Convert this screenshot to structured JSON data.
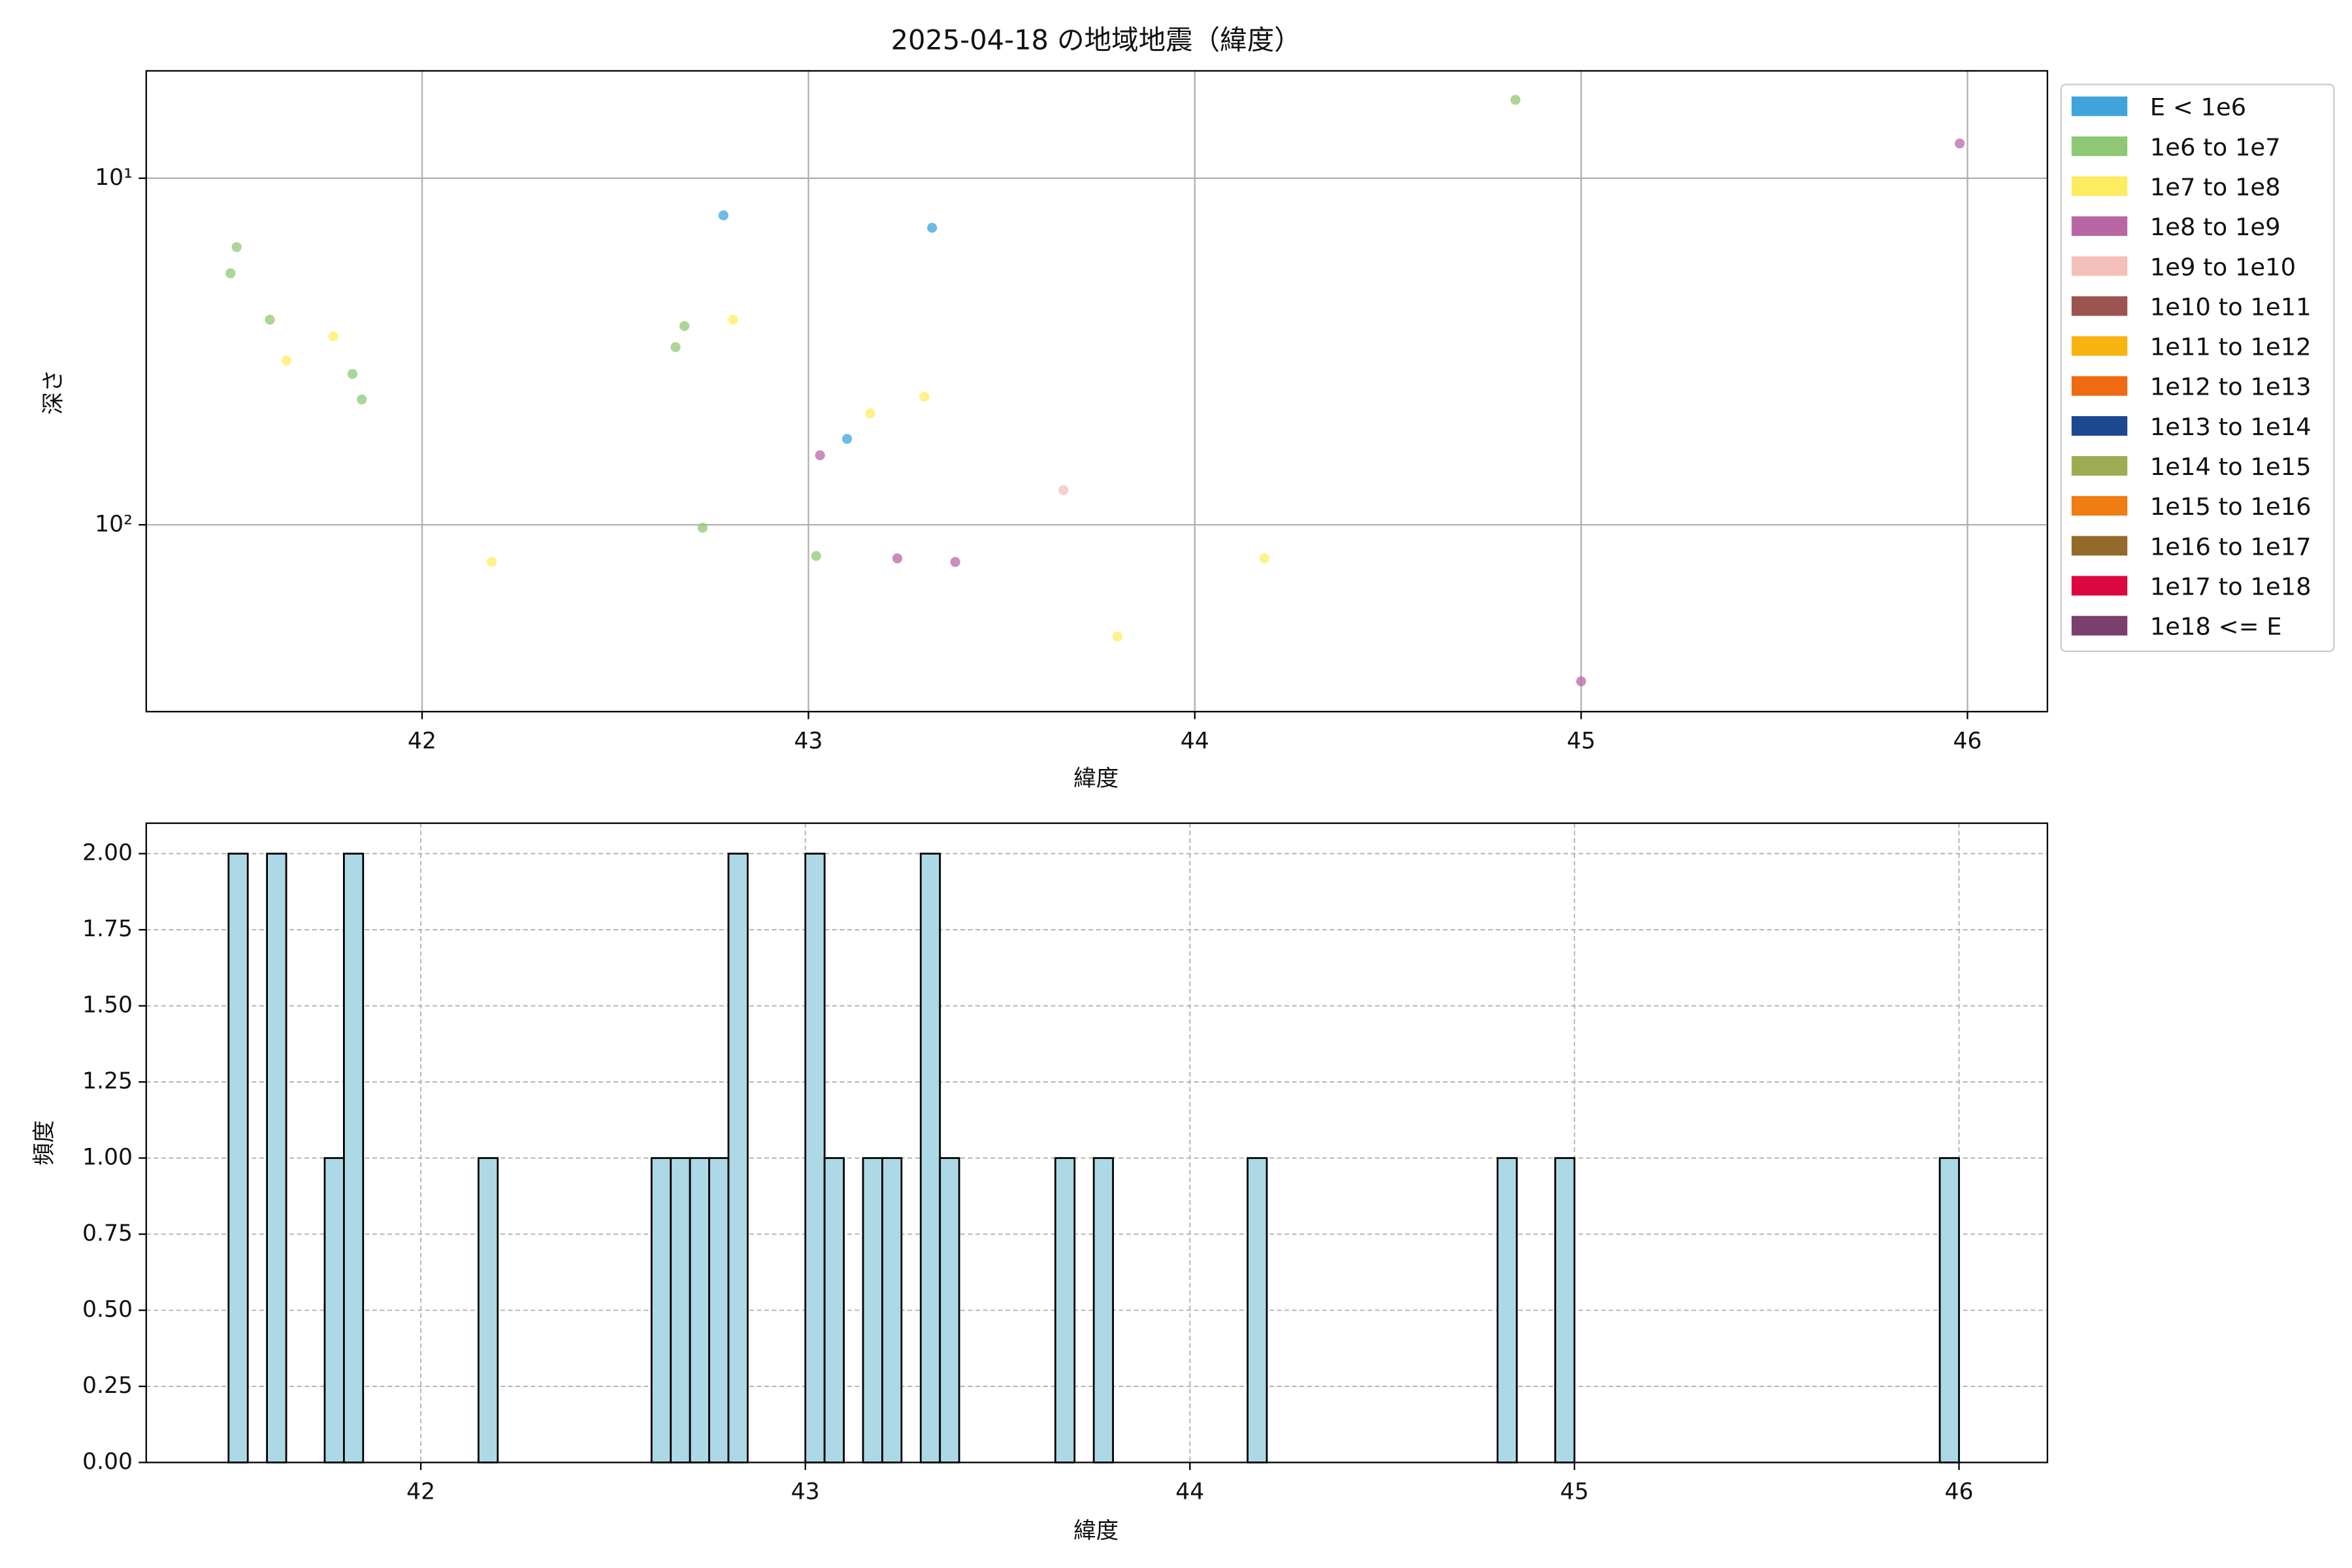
{
  "chart_data": [
    {
      "type": "scatter",
      "title": "2025-04-18 の地域地震（緯度）",
      "xlabel": "緯度",
      "ylabel": "深さ",
      "xlim": [
        41.286,
        46.207
      ],
      "xticks": [
        42,
        43,
        44,
        45,
        46
      ],
      "ylim": [
        4.9,
        346
      ],
      "yticks": [
        {
          "value": 10,
          "label": "10¹"
        },
        {
          "value": 100,
          "label": "10²"
        }
      ],
      "log_y": true,
      "y_inverted": true,
      "grid": true,
      "legend": "outside right",
      "series": [
        {
          "name": "E < 1e6",
          "color": "#3fa3dc",
          "x": [
            42.78,
            43.32,
            43.1
          ],
          "values": [
            12.8,
            13.9,
            56.5
          ]
        },
        {
          "name": "1e6 to 1e7",
          "color": "#8fc875",
          "x": [
            41.504,
            41.52,
            41.606,
            41.82,
            41.844,
            42.656,
            42.679,
            42.726,
            43.02,
            44.83
          ],
          "values": [
            18.8,
            15.8,
            25.6,
            36.7,
            43.5,
            30.7,
            26.7,
            102,
            123,
            5.94
          ]
        },
        {
          "name": "1e7 to 1e8",
          "color": "#fdec60",
          "x": [
            41.649,
            41.77,
            42.18,
            42.805,
            43.16,
            43.3,
            43.8,
            44.18
          ],
          "values": [
            33.6,
            28.6,
            128,
            25.6,
            47.7,
            42.7,
            210,
            125
          ]
        },
        {
          "name": "1e8 to 1e9",
          "color": "#b967a4",
          "x": [
            43.03,
            43.23,
            43.38,
            45.0,
            45.98
          ],
          "values": [
            63,
            125,
            128,
            283,
            7.94
          ]
        },
        {
          "name": "1e9 to 1e10",
          "color": "#f6c0ba",
          "x": [
            43.66
          ],
          "values": [
            79.4
          ]
        },
        {
          "name": "1e10 to 1e11",
          "color": "#9b5450",
          "x": [],
          "values": []
        },
        {
          "name": "1e11 to 1e12",
          "color": "#f9b310",
          "x": [],
          "values": []
        },
        {
          "name": "1e12 to 1e13",
          "color": "#ef6a10",
          "x": [],
          "values": []
        },
        {
          "name": "1e13 to 1e14",
          "color": "#1c4890",
          "x": [],
          "values": []
        },
        {
          "name": "1e14 to 1e15",
          "color": "#9eab52",
          "x": [],
          "values": []
        },
        {
          "name": "1e15 to 1e16",
          "color": "#f07c12",
          "x": [],
          "values": []
        },
        {
          "name": "1e16 to 1e17",
          "color": "#936a2a",
          "x": [],
          "values": []
        },
        {
          "name": "1e17 to 1e18",
          "color": "#dc0741",
          "x": [],
          "values": []
        },
        {
          "name": "1e18 <= E",
          "color": "#7b3f6e",
          "x": [],
          "values": []
        }
      ]
    },
    {
      "type": "histogram",
      "xlabel": "緯度",
      "ylabel": "頻度",
      "color": "#add8e6",
      "xlim": [
        41.286,
        46.23
      ],
      "xticks": [
        42,
        43,
        44,
        45,
        46
      ],
      "ylim": [
        0,
        2.1
      ],
      "yticks": [
        {
          "value": 0,
          "label": "0.00"
        },
        {
          "value": 0.25,
          "label": "0.25"
        },
        {
          "value": 0.5,
          "label": "0.50"
        },
        {
          "value": 0.75,
          "label": "0.75"
        },
        {
          "value": 1,
          "label": "1.00"
        },
        {
          "value": 1.25,
          "label": "1.25"
        },
        {
          "value": 1.5,
          "label": "1.50"
        },
        {
          "value": 1.75,
          "label": "1.75"
        },
        {
          "value": 2,
          "label": "2.00"
        }
      ],
      "grid": true,
      "grid_style": "dashed",
      "bins": [
        41.5,
        41.55,
        41.6,
        41.65,
        41.7,
        41.75,
        41.8,
        41.85,
        41.9,
        41.95,
        42,
        42.05,
        42.1,
        42.15,
        42.2,
        42.25,
        42.3,
        42.35,
        42.4,
        42.45,
        42.5,
        42.55,
        42.6,
        42.65,
        42.7,
        42.75,
        42.8,
        42.85,
        42.9,
        42.95,
        43,
        43.05,
        43.1,
        43.15,
        43.2,
        43.25,
        43.3,
        43.35,
        43.4,
        43.45,
        43.5,
        43.55,
        43.6,
        43.65,
        43.7,
        43.75,
        43.8,
        43.85,
        43.9,
        43.95,
        44,
        44.05,
        44.1,
        44.15,
        44.2,
        44.25,
        44.3,
        44.35,
        44.4,
        44.45,
        44.5,
        44.55,
        44.6,
        44.65,
        44.7,
        44.75,
        44.8,
        44.85,
        44.9,
        44.95,
        45,
        45.05,
        45.1,
        45.15,
        45.2,
        45.25,
        45.3,
        45.35,
        45.4,
        45.45,
        45.5,
        45.55,
        45.6,
        45.65,
        45.7,
        45.75,
        45.8,
        45.85,
        45.9,
        45.95,
        46
      ],
      "values": [
        2,
        0,
        2,
        0,
        0,
        1,
        2,
        0,
        0,
        0,
        0,
        0,
        0,
        1,
        0,
        0,
        0,
        0,
        0,
        0,
        0,
        0,
        1,
        1,
        1,
        1,
        2,
        0,
        0,
        0,
        2,
        1,
        0,
        1,
        1,
        0,
        2,
        1,
        0,
        0,
        0,
        0,
        0,
        1,
        0,
        1,
        0,
        0,
        0,
        0,
        0,
        0,
        0,
        1,
        0,
        0,
        0,
        0,
        0,
        0,
        0,
        0,
        0,
        0,
        0,
        0,
        1,
        0,
        0,
        1,
        0,
        0,
        0,
        0,
        0,
        0,
        0,
        0,
        0,
        0,
        0,
        0,
        0,
        0,
        0,
        0,
        0,
        0,
        0,
        1
      ]
    }
  ]
}
